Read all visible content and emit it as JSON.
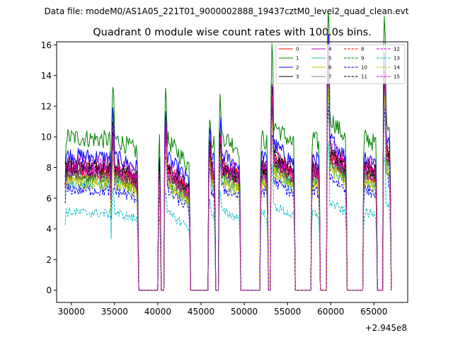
{
  "suptitle": "Data file: modeM0/AS1A05_221T01_9000002888_19437cztM0_level2_quad_clean.evt",
  "chart_data": {
    "type": "line",
    "title": "Quadrant 0 module wise count rates with 100.0s bins.",
    "xlabel": "",
    "ylabel": "",
    "x_offset_label": "+2.945e8",
    "xlim": [
      28300,
      68900
    ],
    "ylim": [
      -0.8,
      16.2
    ],
    "xticks": [
      30000,
      35000,
      40000,
      45000,
      50000,
      55000,
      60000,
      65000
    ],
    "xtick_labels": [
      "30000",
      "35000",
      "40000",
      "45000",
      "50000",
      "55000",
      "60000",
      "65000"
    ],
    "yticks": [
      0,
      2,
      4,
      6,
      8,
      10,
      12,
      14,
      16
    ],
    "ytick_labels": [
      "0",
      "2",
      "4",
      "6",
      "8",
      "10",
      "12",
      "14",
      "16"
    ],
    "grid": false,
    "legend_position": "top-right",
    "bin_seconds": 100,
    "segments": [
      {
        "start": 29300,
        "end": 34700,
        "level": 1.0,
        "end_factor": 0.98,
        "spike": 0
      },
      {
        "start": 34700,
        "end": 37800,
        "level": 1.0,
        "end_factor": 0.9,
        "spike": 1.3
      },
      {
        "start": 40100,
        "end": 40400,
        "level": 0.95,
        "end_factor": 0.9,
        "spike": 1.05
      },
      {
        "start": 40800,
        "end": 43800,
        "level": 1.0,
        "end_factor": 0.8,
        "spike": 1.3
      },
      {
        "start": 45900,
        "end": 46700,
        "level": 1.0,
        "end_factor": 0.95,
        "spike": 1.15
      },
      {
        "start": 47100,
        "end": 49600,
        "level": 1.02,
        "end_factor": 0.9,
        "spike": 1.2
      },
      {
        "start": 51900,
        "end": 52800,
        "level": 1.0,
        "end_factor": 0.95,
        "spike": 0
      },
      {
        "start": 53100,
        "end": 55900,
        "level": 1.1,
        "end_factor": 0.85,
        "spike": 1.4
      },
      {
        "start": 57800,
        "end": 58800,
        "level": 1.0,
        "end_factor": 0.95,
        "spike": 0
      },
      {
        "start": 59600,
        "end": 61900,
        "level": 1.15,
        "end_factor": 0.85,
        "spike": 1.6
      },
      {
        "start": 63800,
        "end": 65400,
        "level": 1.0,
        "end_factor": 0.95,
        "spike": 0
      },
      {
        "start": 66100,
        "end": 67000,
        "level": 1.2,
        "end_factor": 0.85,
        "spike": 1.5
      }
    ],
    "series": [
      {
        "name": "0",
        "color": "#ff0000",
        "dash": "solid",
        "base": 8.0
      },
      {
        "name": "1",
        "color": "#008000",
        "dash": "solid",
        "base": 10.0
      },
      {
        "name": "2",
        "color": "#0000ff",
        "dash": "solid",
        "base": 8.8
      },
      {
        "name": "3",
        "color": "#000000",
        "dash": "solid",
        "base": 8.2
      },
      {
        "name": "4",
        "color": "#bf00bf",
        "dash": "solid",
        "base": 7.9
      },
      {
        "name": "5",
        "color": "#1fbfaa",
        "dash": "solid",
        "base": 7.1
      },
      {
        "name": "6",
        "color": "#bfbf00",
        "dash": "solid",
        "base": 7.3
      },
      {
        "name": "7",
        "color": "#808080",
        "dash": "solid",
        "base": 7.6
      },
      {
        "name": "8",
        "color": "#ff0000",
        "dash": "dashed",
        "base": 7.8
      },
      {
        "name": "9",
        "color": "#008000",
        "dash": "dashed",
        "base": 7.5
      },
      {
        "name": "10",
        "color": "#0000ff",
        "dash": "dashed",
        "base": 6.6
      },
      {
        "name": "11",
        "color": "#000000",
        "dash": "dashed",
        "base": 8.0
      },
      {
        "name": "12",
        "color": "#bf00bf",
        "dash": "dashed",
        "base": 7.7
      },
      {
        "name": "13",
        "color": "#00bfbf",
        "dash": "dashed",
        "base": 5.1
      },
      {
        "name": "14",
        "color": "#bfbf00",
        "dash": "dashed",
        "base": 7.0
      },
      {
        "name": "15",
        "color": "#bf00bf",
        "dash": "dashed",
        "base": 8.4
      }
    ]
  }
}
